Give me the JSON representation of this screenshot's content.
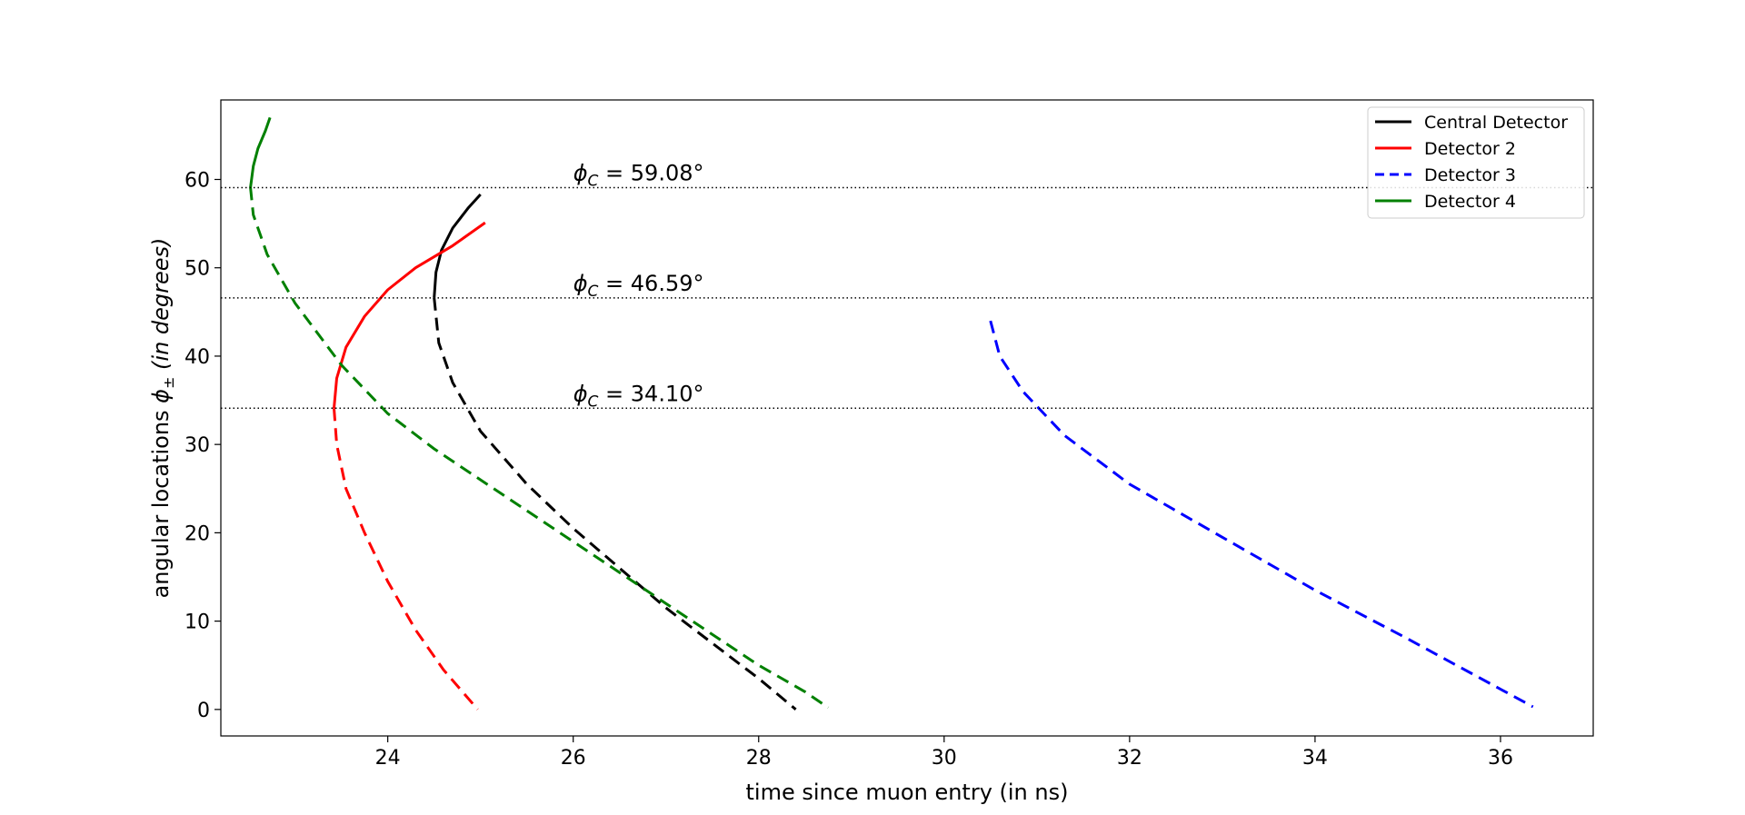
{
  "chart_data": {
    "type": "line",
    "xlabel": "time since muon entry (in ns)",
    "ylabel_main": "angular locations ",
    "ylabel_symbol": "ϕ",
    "ylabel_sub": "±",
    "ylabel_italic": " (in degrees)",
    "xlim": [
      22.2,
      37.0
    ],
    "ylim": [
      -3,
      69
    ],
    "xticks": [
      24,
      26,
      28,
      30,
      32,
      34,
      36
    ],
    "yticks": [
      0,
      10,
      20,
      30,
      40,
      50,
      60
    ],
    "grid": false,
    "legend_position": "top-right",
    "reference_lines": [
      {
        "y": 59.08,
        "label_symbol": "ϕ",
        "label_sub": "C",
        "label_value": " = 59.08°"
      },
      {
        "y": 46.59,
        "label_symbol": "ϕ",
        "label_sub": "C",
        "label_value": " = 46.59°"
      },
      {
        "y": 34.1,
        "label_symbol": "ϕ",
        "label_sub": "C",
        "label_value": " = 34.10°"
      }
    ],
    "series": [
      {
        "name": "Central Detector",
        "color": "#000000",
        "solid": [
          [
            24.5,
            46.6
          ],
          [
            24.52,
            49.5
          ],
          [
            24.58,
            52.0
          ],
          [
            24.7,
            54.5
          ],
          [
            24.87,
            56.8
          ],
          [
            25.0,
            58.3
          ]
        ],
        "dashed": [
          [
            24.5,
            46.6
          ],
          [
            24.55,
            41.5
          ],
          [
            24.7,
            37.0
          ],
          [
            25.0,
            31.5
          ],
          [
            25.5,
            25.5
          ],
          [
            26.0,
            20.5
          ],
          [
            26.5,
            16.0
          ],
          [
            27.0,
            11.5
          ],
          [
            27.5,
            7.5
          ],
          [
            28.0,
            3.5
          ],
          [
            28.4,
            0.0
          ]
        ]
      },
      {
        "name": "Detector 2",
        "color": "#ff0000",
        "solid": [
          [
            23.42,
            34.1
          ],
          [
            23.45,
            37.5
          ],
          [
            23.55,
            41.0
          ],
          [
            23.75,
            44.5
          ],
          [
            24.0,
            47.5
          ],
          [
            24.3,
            50.0
          ],
          [
            24.7,
            52.5
          ],
          [
            25.05,
            55.1
          ]
        ],
        "dashed": [
          [
            23.42,
            34.1
          ],
          [
            23.45,
            30.0
          ],
          [
            23.55,
            25.0
          ],
          [
            23.75,
            20.0
          ],
          [
            24.0,
            14.5
          ],
          [
            24.3,
            9.0
          ],
          [
            24.6,
            4.5
          ],
          [
            24.97,
            0.0
          ]
        ]
      },
      {
        "name": "Detector 3",
        "color": "#0000ff",
        "solid": [],
        "dashed": [
          [
            30.5,
            44.0
          ],
          [
            30.6,
            40.0
          ],
          [
            30.85,
            36.0
          ],
          [
            31.3,
            31.0
          ],
          [
            32.0,
            25.5
          ],
          [
            33.0,
            19.5
          ],
          [
            34.0,
            13.5
          ],
          [
            35.0,
            8.0
          ],
          [
            36.35,
            0.3
          ]
        ]
      },
      {
        "name": "Detector 4",
        "color": "#008000",
        "solid": [
          [
            22.52,
            59.08
          ],
          [
            22.55,
            61.5
          ],
          [
            22.6,
            63.5
          ],
          [
            22.68,
            65.5
          ],
          [
            22.73,
            67.0
          ]
        ],
        "dashed": [
          [
            22.52,
            59.08
          ],
          [
            22.55,
            56.0
          ],
          [
            22.7,
            51.5
          ],
          [
            23.0,
            46.0
          ],
          [
            23.5,
            39.0
          ],
          [
            24.0,
            33.5
          ],
          [
            24.5,
            29.5
          ],
          [
            25.0,
            26.0
          ],
          [
            25.5,
            22.5
          ],
          [
            26.0,
            19.0
          ],
          [
            26.5,
            15.5
          ],
          [
            27.0,
            12.0
          ],
          [
            27.5,
            8.5
          ],
          [
            28.0,
            5.0
          ],
          [
            28.5,
            2.0
          ],
          [
            28.75,
            0.2
          ]
        ]
      }
    ]
  }
}
